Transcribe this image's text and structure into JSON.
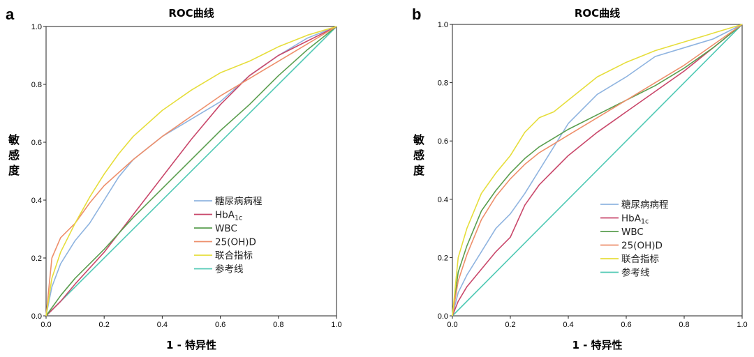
{
  "chart_data": [
    {
      "type": "line",
      "panel": "a",
      "title": "ROC曲线",
      "xlabel": "1 - 特异性",
      "ylabel": "敏感度",
      "xlim": [
        0,
        1
      ],
      "ylim": [
        0,
        1
      ],
      "xticks": [
        "0.0",
        "0.2",
        "0.4",
        "0.6",
        "0.8",
        "1.0"
      ],
      "yticks": [
        "0.0",
        "0.2",
        "0.4",
        "0.6",
        "0.8",
        "1.0"
      ],
      "grid": false,
      "legend_position": "lower-right",
      "series": [
        {
          "name": "糖尿病病程",
          "color": "#8fb4e0",
          "x": [
            0,
            0.02,
            0.05,
            0.1,
            0.15,
            0.2,
            0.25,
            0.3,
            0.35,
            0.4,
            0.5,
            0.6,
            0.7,
            0.8,
            0.9,
            1.0
          ],
          "y": [
            0,
            0.1,
            0.18,
            0.26,
            0.32,
            0.4,
            0.48,
            0.54,
            0.58,
            0.62,
            0.68,
            0.74,
            0.83,
            0.9,
            0.96,
            1.0
          ]
        },
        {
          "name": "HbA",
          "subscript": "1c",
          "color": "#c9486b",
          "x": [
            0,
            0.05,
            0.1,
            0.2,
            0.3,
            0.4,
            0.5,
            0.6,
            0.7,
            0.8,
            0.9,
            1.0
          ],
          "y": [
            0,
            0.05,
            0.11,
            0.22,
            0.35,
            0.48,
            0.61,
            0.73,
            0.83,
            0.9,
            0.95,
            1.0
          ]
        },
        {
          "name": "WBC",
          "color": "#5a9e4f",
          "x": [
            0,
            0.05,
            0.1,
            0.2,
            0.3,
            0.4,
            0.5,
            0.6,
            0.7,
            0.8,
            0.9,
            1.0
          ],
          "y": [
            0,
            0.07,
            0.13,
            0.23,
            0.34,
            0.44,
            0.54,
            0.64,
            0.73,
            0.83,
            0.92,
            1.0
          ]
        },
        {
          "name": "25(OH)D",
          "color": "#ee8f6b",
          "x": [
            0,
            0.02,
            0.05,
            0.1,
            0.15,
            0.2,
            0.3,
            0.4,
            0.5,
            0.6,
            0.7,
            0.8,
            0.9,
            1.0
          ],
          "y": [
            0,
            0.2,
            0.27,
            0.32,
            0.39,
            0.45,
            0.54,
            0.62,
            0.69,
            0.76,
            0.82,
            0.88,
            0.94,
            1.0
          ]
        },
        {
          "name": "联合指标",
          "color": "#e6de3c",
          "x": [
            0,
            0.02,
            0.05,
            0.1,
            0.15,
            0.2,
            0.25,
            0.3,
            0.4,
            0.5,
            0.6,
            0.7,
            0.8,
            0.9,
            1.0
          ],
          "y": [
            0,
            0.13,
            0.22,
            0.32,
            0.41,
            0.49,
            0.56,
            0.62,
            0.71,
            0.78,
            0.84,
            0.88,
            0.93,
            0.97,
            1.0
          ]
        },
        {
          "name": "参考线",
          "color": "#4fc9b4",
          "x": [
            0,
            1.0
          ],
          "y": [
            0,
            1.0
          ]
        }
      ]
    },
    {
      "type": "line",
      "panel": "b",
      "title": "ROC曲线",
      "xlabel": "1 - 特异性",
      "ylabel": "敏感度",
      "xlim": [
        0,
        1
      ],
      "ylim": [
        0,
        1
      ],
      "xticks": [
        "0.0",
        "0.2",
        "0.4",
        "0.6",
        "0.8",
        "1.0"
      ],
      "yticks": [
        "0.0",
        "0.2",
        "0.4",
        "0.6",
        "0.8",
        "1.0"
      ],
      "grid": false,
      "legend_position": "lower-right",
      "series": [
        {
          "name": "糖尿病病程",
          "color": "#8fb4e0",
          "x": [
            0,
            0.02,
            0.05,
            0.1,
            0.15,
            0.2,
            0.25,
            0.3,
            0.35,
            0.4,
            0.5,
            0.6,
            0.7,
            0.8,
            0.9,
            1.0
          ],
          "y": [
            0,
            0.08,
            0.14,
            0.22,
            0.3,
            0.35,
            0.42,
            0.5,
            0.58,
            0.66,
            0.76,
            0.82,
            0.89,
            0.92,
            0.95,
            1.0
          ]
        },
        {
          "name": "HbA",
          "subscript": "1c",
          "color": "#c9486b",
          "x": [
            0,
            0.02,
            0.05,
            0.1,
            0.15,
            0.2,
            0.25,
            0.3,
            0.35,
            0.4,
            0.5,
            0.6,
            0.7,
            0.8,
            0.9,
            1.0
          ],
          "y": [
            0,
            0.05,
            0.1,
            0.16,
            0.22,
            0.27,
            0.38,
            0.45,
            0.5,
            0.55,
            0.63,
            0.7,
            0.77,
            0.84,
            0.92,
            1.0
          ]
        },
        {
          "name": "WBC",
          "color": "#5a9e4f",
          "x": [
            0,
            0.02,
            0.05,
            0.1,
            0.15,
            0.2,
            0.25,
            0.3,
            0.35,
            0.4,
            0.5,
            0.6,
            0.7,
            0.8,
            0.9,
            1.0
          ],
          "y": [
            0,
            0.15,
            0.24,
            0.36,
            0.43,
            0.49,
            0.54,
            0.58,
            0.61,
            0.64,
            0.69,
            0.74,
            0.79,
            0.85,
            0.92,
            1.0
          ]
        },
        {
          "name": "25(OH)D",
          "color": "#ee8f6b",
          "x": [
            0,
            0.02,
            0.05,
            0.1,
            0.15,
            0.2,
            0.25,
            0.3,
            0.35,
            0.4,
            0.5,
            0.6,
            0.7,
            0.8,
            0.9,
            1.0
          ],
          "y": [
            0,
            0.12,
            0.21,
            0.33,
            0.41,
            0.47,
            0.52,
            0.56,
            0.59,
            0.62,
            0.68,
            0.74,
            0.8,
            0.86,
            0.93,
            1.0
          ]
        },
        {
          "name": "联合指标",
          "color": "#e6de3c",
          "x": [
            0,
            0.02,
            0.05,
            0.1,
            0.15,
            0.2,
            0.25,
            0.3,
            0.35,
            0.4,
            0.5,
            0.6,
            0.7,
            0.8,
            0.9,
            1.0
          ],
          "y": [
            0,
            0.2,
            0.3,
            0.42,
            0.49,
            0.55,
            0.63,
            0.68,
            0.7,
            0.74,
            0.82,
            0.87,
            0.91,
            0.94,
            0.97,
            1.0
          ]
        },
        {
          "name": "参考线",
          "color": "#4fc9b4",
          "x": [
            0,
            1.0
          ],
          "y": [
            0,
            1.0
          ]
        }
      ]
    }
  ]
}
